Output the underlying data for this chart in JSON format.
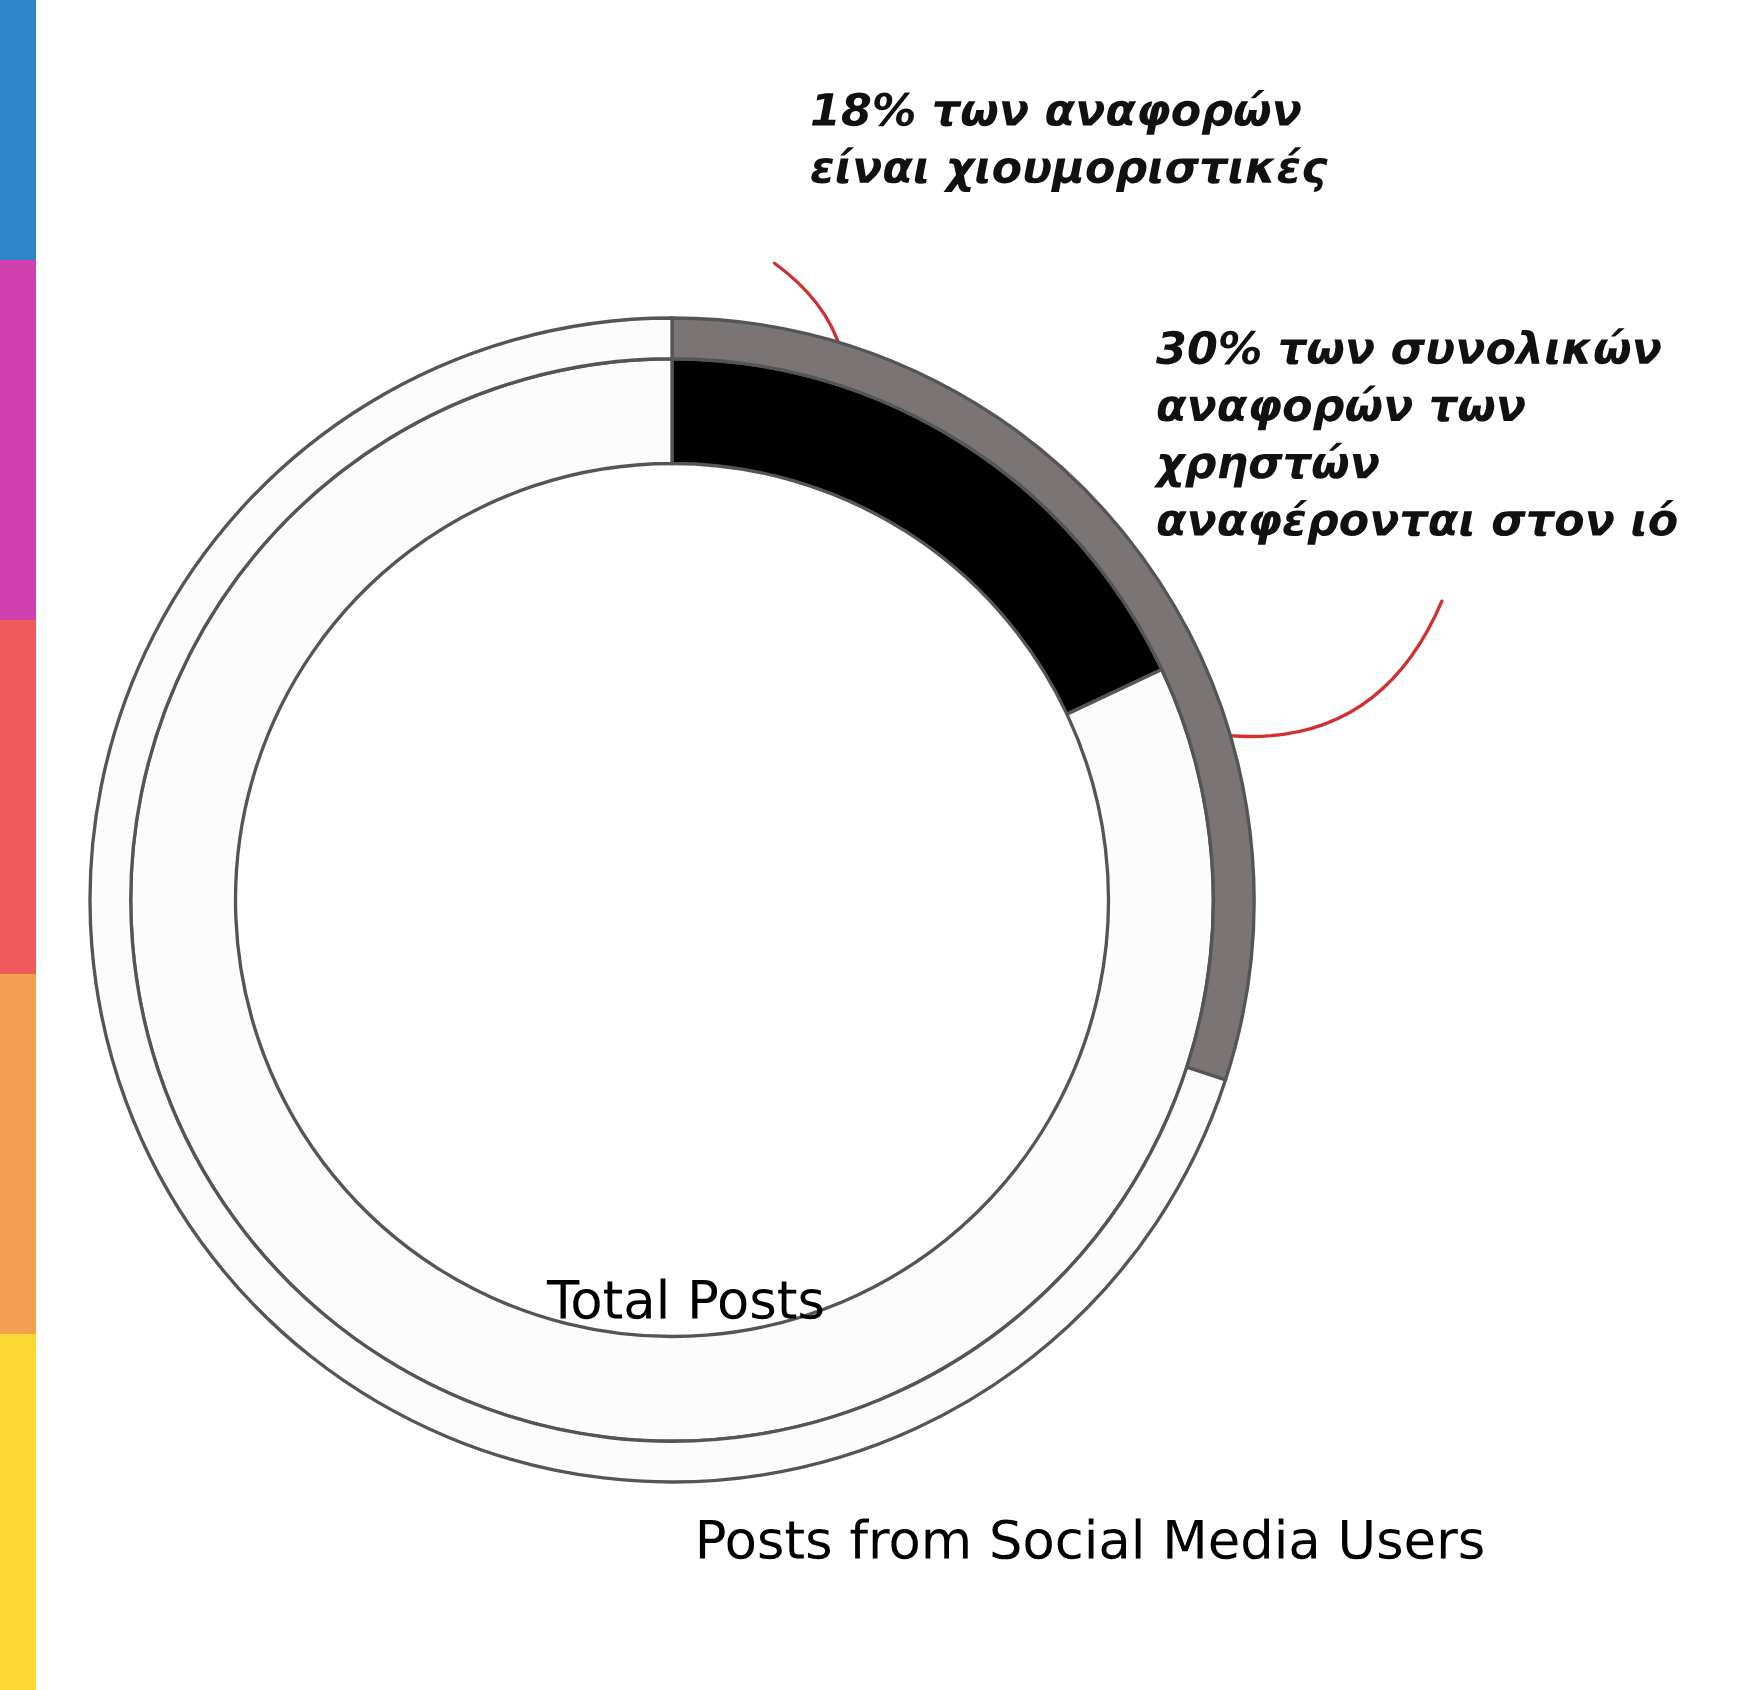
{
  "chart_data": {
    "type": "donut",
    "categories": [
      null,
      null
    ],
    "series": [
      {
        "name": "Total Posts",
        "values": [
          18,
          82
        ],
        "colors": [
          "#000000",
          "#fcfcfc"
        ]
      },
      {
        "name": "Posts from Social Media Users",
        "values": [
          30,
          70
        ],
        "colors": [
          "#7a7474",
          "#fcfcfc"
        ]
      }
    ],
    "annotations": [
      "18% των αναφορών\nείναι χιουμοριστικές",
      "30% των συνολικών\nαναφορών των\nχρηστών\nαναφέρονται στον ιό"
    ],
    "legend": false
  }
}
